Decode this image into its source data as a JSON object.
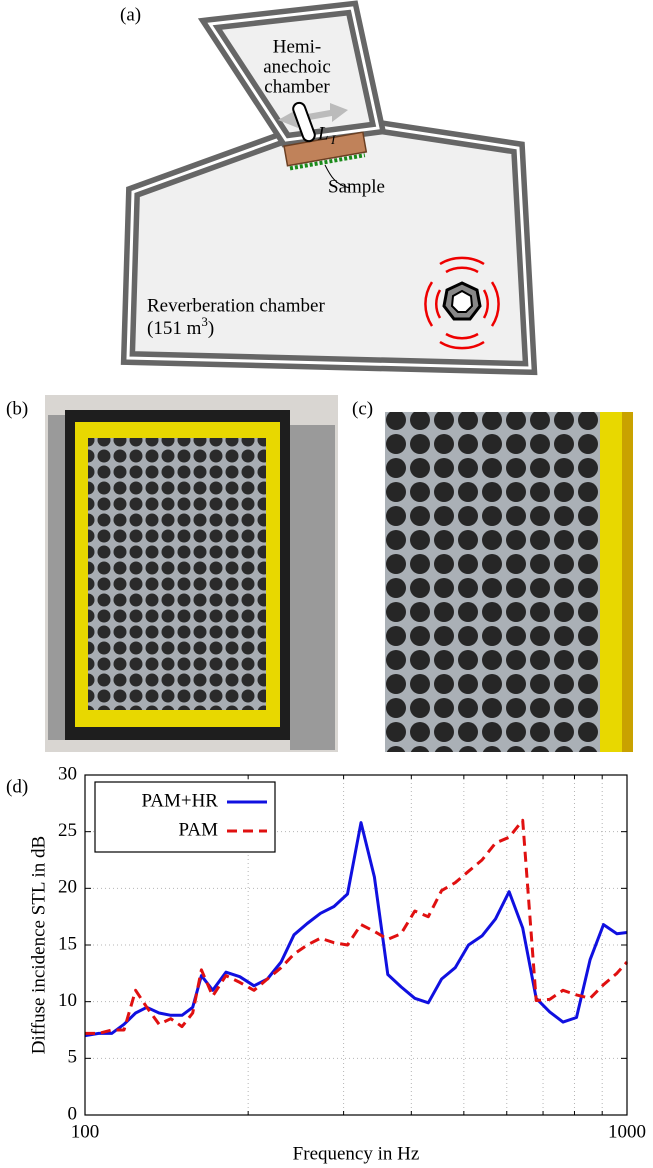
{
  "panel_labels": [
    "(a)",
    "(b)",
    "(c)",
    "(d)"
  ],
  "diagram": {
    "hemi_label": [
      "Hemi-",
      "anechoic",
      "chamber"
    ],
    "probe_label": "L",
    "probe_subscript": "I",
    "sample_label": "Sample",
    "reverb_label": "Reverberation chamber",
    "volume_label": "(151 m",
    "volume_exponent": "3",
    "volume_close": ")"
  },
  "chart_data": {
    "type": "line",
    "xlabel": "Frequency in Hz",
    "ylabel": "Diffuse incidence STL in dB",
    "xscale": "log",
    "xlim": [
      100,
      1000
    ],
    "xticks": [
      100,
      1000
    ],
    "xminor_ticks": [
      200,
      300,
      400,
      500,
      600,
      700,
      800,
      900
    ],
    "ylim": [
      0,
      30
    ],
    "yticks": [
      0,
      5,
      10,
      15,
      20,
      25,
      30
    ],
    "grid": true,
    "legend": "upper left",
    "x": [
      100,
      106,
      112,
      118,
      124,
      130,
      137,
      144,
      151,
      158,
      164,
      172,
      182,
      193,
      205,
      217,
      230,
      243,
      257,
      272,
      288,
      305,
      323,
      342,
      362,
      383,
      406,
      430,
      455,
      482,
      510,
      540,
      572,
      606,
      642,
      680,
      720,
      762,
      807,
      855,
      905,
      958,
      1000
    ],
    "series": [
      {
        "name": "PAM+HR",
        "color": "#1010e0",
        "dash": "solid",
        "values": [
          7.0,
          7.2,
          7.2,
          8.0,
          9.0,
          9.5,
          9.0,
          8.8,
          8.8,
          9.5,
          12.3,
          11.0,
          12.6,
          12.2,
          11.4,
          12.0,
          13.5,
          15.9,
          16.9,
          17.8,
          18.4,
          19.5,
          25.8,
          21.0,
          12.4,
          11.3,
          10.3,
          9.9,
          12.0,
          13.0,
          15.0,
          15.8,
          17.3,
          19.7,
          16.5,
          10.3,
          9.1,
          8.2,
          8.6,
          13.7,
          16.8,
          16.0,
          16.1
        ]
      },
      {
        "name": "PAM",
        "color": "#e01010",
        "dash": "dashed",
        "values": [
          7.2,
          7.2,
          7.5,
          7.5,
          11.0,
          9.5,
          8.0,
          8.5,
          7.8,
          9.0,
          12.8,
          10.5,
          12.3,
          11.7,
          11.0,
          12.0,
          13.0,
          14.2,
          15.0,
          15.6,
          15.2,
          15.0,
          16.8,
          16.2,
          15.5,
          16.0,
          18.0,
          17.5,
          19.8,
          20.5,
          21.5,
          22.5,
          24.0,
          24.5,
          26.0,
          10.1,
          10.2,
          11.0,
          10.6,
          10.3,
          11.5,
          12.5,
          13.5
        ]
      }
    ]
  }
}
